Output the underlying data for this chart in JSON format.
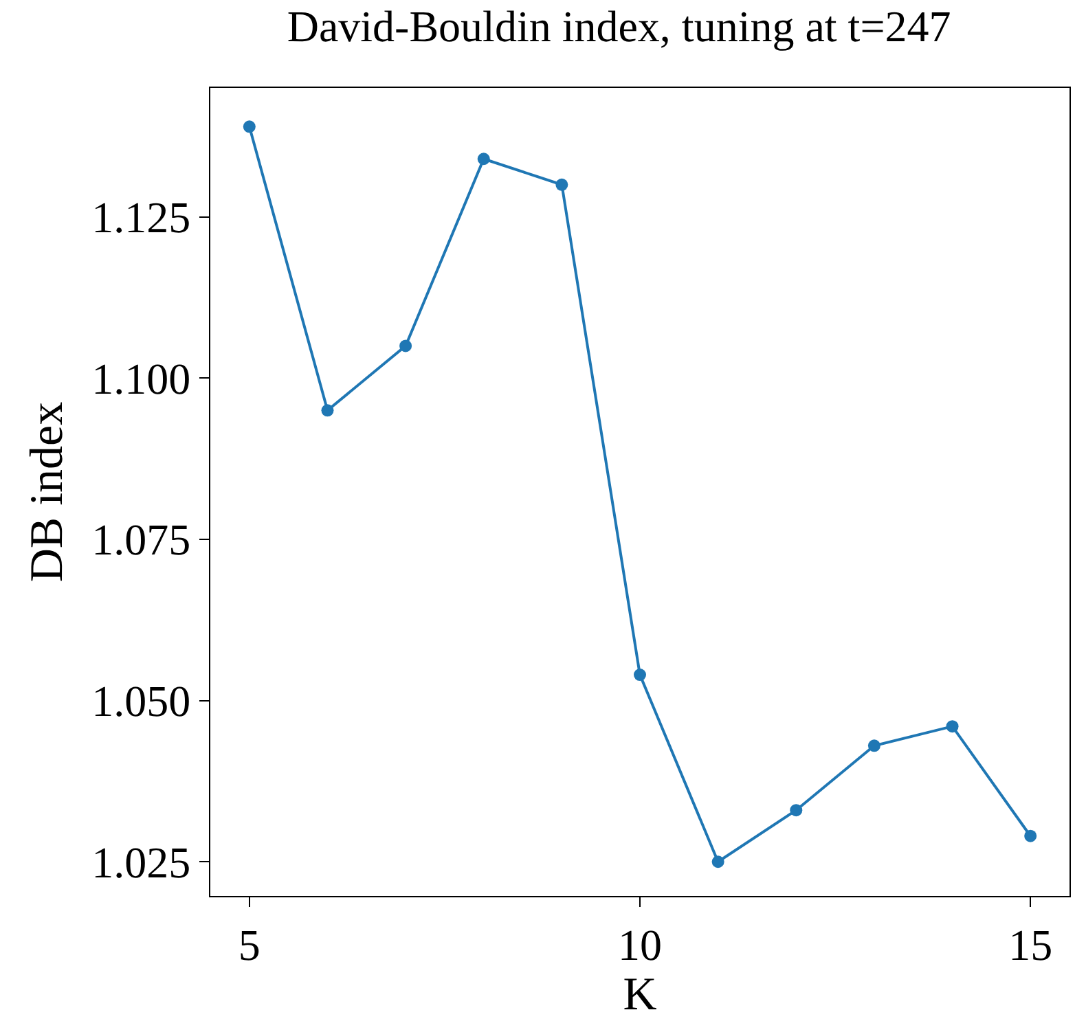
{
  "chart_data": {
    "type": "line",
    "title": "David-Bouldin index, tuning at t=247",
    "xlabel": "K",
    "ylabel": "DB index",
    "x": [
      5,
      6,
      7,
      8,
      9,
      10,
      11,
      12,
      13,
      14,
      15
    ],
    "series": [
      {
        "color": "#1f77b4",
        "values": [
          1.139,
          1.095,
          1.105,
          1.134,
          1.13,
          1.054,
          1.025,
          1.033,
          1.043,
          1.046,
          1.029
        ]
      }
    ],
    "xlim": [
      4.5,
      15.5
    ],
    "xticks": [
      5,
      10,
      15
    ],
    "ylim": [
      1.0197,
      1.145
    ],
    "yticks": [
      {
        "value": 1.025,
        "label": "1.025"
      },
      {
        "value": 1.05,
        "label": "1.050"
      },
      {
        "value": 1.075,
        "label": "1.075"
      },
      {
        "value": 1.1,
        "label": "1.100"
      },
      {
        "value": 1.125,
        "label": "1.125"
      }
    ],
    "marker": "circle",
    "line_style": "solid"
  }
}
